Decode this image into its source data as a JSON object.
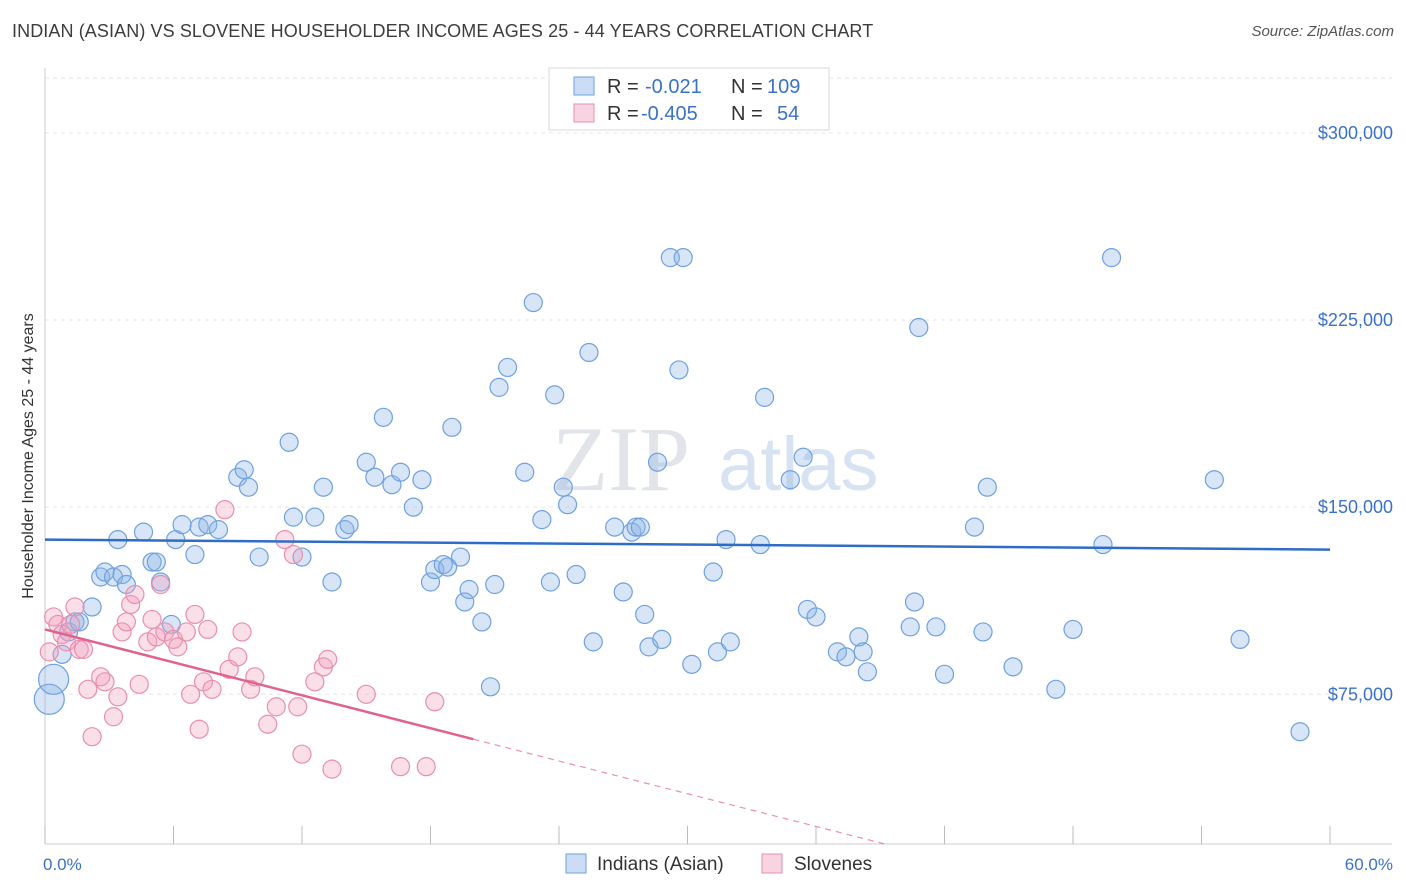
{
  "title": "INDIAN (ASIAN) VS SLOVENE HOUSEHOLDER INCOME AGES 25 - 44 YEARS CORRELATION CHART",
  "source": "Source: ZipAtlas.com",
  "watermark": {
    "zip": "ZIP",
    "atlas": "atlas"
  },
  "colors": {
    "blue": "#6fa1e0",
    "blue_fill": "rgba(140,180,230,0.35)",
    "blue_line": "#2f6cc7",
    "pink": "#e98fad",
    "pink_fill": "rgba(240,160,190,0.35)",
    "pink_line": "#e0638f",
    "tick_label": "#3a72c8"
  },
  "legend": {
    "row1": {
      "r_label": "R = ",
      "r_value": "-0.021",
      "n_label": "N = ",
      "n_value": "109"
    },
    "row2": {
      "r_label": "R = ",
      "r_value": "-0.405",
      "n_label": "N = ",
      "n_value": "54"
    }
  },
  "chart_data": {
    "type": "scatter",
    "title": "INDIAN (ASIAN) VS SLOVENE HOUSEHOLDER INCOME AGES 25 - 44 YEARS CORRELATION CHART",
    "xlabel": "",
    "ylabel": "Householder Income Ages 25 - 44 years",
    "xlim": [
      0,
      60
    ],
    "ylim": [
      15000,
      322000
    ],
    "x_tick_labels": [
      "0.0%",
      "60.0%"
    ],
    "y_ticks": [
      75000,
      150000,
      225000,
      300000
    ],
    "y_tick_labels": [
      "$75,000",
      "$150,000",
      "$225,000",
      "$300,000"
    ],
    "grid": true,
    "legend_position": "top-center",
    "series": [
      {
        "name": "Indians (Asian)",
        "color": "#6fa1e0",
        "trend": {
          "x": [
            0,
            60
          ],
          "y": [
            137000,
            133000
          ]
        },
        "points": [
          [
            0.2,
            73000,
            2
          ],
          [
            0.4,
            81000,
            2
          ],
          [
            0.8,
            91000,
            1
          ],
          [
            1.1,
            100000,
            1
          ],
          [
            1.4,
            104000,
            1
          ],
          [
            1.6,
            104000,
            1
          ],
          [
            2.2,
            110000,
            1
          ],
          [
            2.6,
            122000,
            1
          ],
          [
            2.8,
            124000,
            1
          ],
          [
            3.2,
            122000,
            1
          ],
          [
            3.4,
            137000,
            1
          ],
          [
            3.6,
            123000,
            1
          ],
          [
            3.8,
            119000,
            1
          ],
          [
            4.6,
            140000,
            1
          ],
          [
            5.0,
            128000,
            1
          ],
          [
            5.2,
            128000,
            1
          ],
          [
            5.4,
            120000,
            1
          ],
          [
            5.9,
            103000,
            1
          ],
          [
            6.1,
            137000,
            1
          ],
          [
            6.4,
            143000,
            1
          ],
          [
            7.0,
            131000,
            1
          ],
          [
            7.2,
            142000,
            1
          ],
          [
            7.6,
            143000,
            1
          ],
          [
            8.1,
            141000,
            1
          ],
          [
            9.0,
            162000,
            1
          ],
          [
            9.3,
            165000,
            1
          ],
          [
            9.5,
            158000,
            1
          ],
          [
            10.0,
            130000,
            1
          ],
          [
            11.4,
            176000,
            1
          ],
          [
            11.6,
            146000,
            1
          ],
          [
            12.0,
            130000,
            1
          ],
          [
            12.6,
            146000,
            1
          ],
          [
            13.0,
            158000,
            1
          ],
          [
            13.4,
            120000,
            1
          ],
          [
            14.0,
            141000,
            1
          ],
          [
            14.2,
            143000,
            1
          ],
          [
            15.0,
            168000,
            1
          ],
          [
            15.4,
            162000,
            1
          ],
          [
            15.8,
            186000,
            1
          ],
          [
            16.2,
            159000,
            1
          ],
          [
            16.6,
            164000,
            1
          ],
          [
            17.2,
            150000,
            1
          ],
          [
            17.6,
            161000,
            1
          ],
          [
            18.0,
            120000,
            1
          ],
          [
            18.2,
            125000,
            1
          ],
          [
            18.6,
            127000,
            1
          ],
          [
            18.8,
            126000,
            1
          ],
          [
            19.0,
            182000,
            1
          ],
          [
            19.4,
            130000,
            1
          ],
          [
            19.6,
            112000,
            1
          ],
          [
            19.8,
            117000,
            1
          ],
          [
            20.4,
            104000,
            1
          ],
          [
            20.8,
            78000,
            1
          ],
          [
            21.0,
            119000,
            1
          ],
          [
            21.2,
            198000,
            1
          ],
          [
            21.6,
            206000,
            1
          ],
          [
            22.4,
            164000,
            1
          ],
          [
            22.8,
            232000,
            1
          ],
          [
            23.2,
            145000,
            1
          ],
          [
            23.6,
            120000,
            1
          ],
          [
            23.8,
            195000,
            1
          ],
          [
            24.2,
            158000,
            1
          ],
          [
            24.4,
            151000,
            1
          ],
          [
            24.8,
            123000,
            1
          ],
          [
            25.4,
            212000,
            1
          ],
          [
            25.6,
            96000,
            1
          ],
          [
            26.6,
            142000,
            1
          ],
          [
            27.0,
            116000,
            1
          ],
          [
            27.4,
            140000,
            1
          ],
          [
            27.6,
            142000,
            1
          ],
          [
            27.8,
            142000,
            1
          ],
          [
            28.0,
            107000,
            1
          ],
          [
            28.2,
            94000,
            1
          ],
          [
            28.6,
            168000,
            1
          ],
          [
            28.8,
            97000,
            1
          ],
          [
            29.2,
            250000,
            1
          ],
          [
            29.6,
            205000,
            1
          ],
          [
            29.8,
            250000,
            1
          ],
          [
            30.2,
            87000,
            1
          ],
          [
            31.2,
            124000,
            1
          ],
          [
            31.4,
            92000,
            1
          ],
          [
            31.8,
            137000,
            1
          ],
          [
            32.0,
            96000,
            1
          ],
          [
            33.4,
            135000,
            1
          ],
          [
            33.6,
            194000,
            1
          ],
          [
            34.8,
            161000,
            1
          ],
          [
            35.4,
            170000,
            1
          ],
          [
            35.6,
            109000,
            1
          ],
          [
            36.0,
            106000,
            1
          ],
          [
            37.0,
            92000,
            1
          ],
          [
            37.4,
            90000,
            1
          ],
          [
            38.0,
            98000,
            1
          ],
          [
            38.4,
            84000,
            1
          ],
          [
            38.2,
            92000,
            1
          ],
          [
            40.4,
            102000,
            1
          ],
          [
            40.6,
            112000,
            1
          ],
          [
            40.8,
            222000,
            1
          ],
          [
            41.6,
            102000,
            1
          ],
          [
            42.0,
            83000,
            1
          ],
          [
            43.4,
            142000,
            1
          ],
          [
            43.8,
            100000,
            1
          ],
          [
            44.0,
            158000,
            1
          ],
          [
            45.2,
            86000,
            1
          ],
          [
            47.2,
            77000,
            1
          ],
          [
            48.0,
            101000,
            1
          ],
          [
            49.4,
            135000,
            1
          ],
          [
            49.8,
            250000,
            1
          ],
          [
            54.6,
            161000,
            1
          ],
          [
            55.8,
            97000,
            1
          ],
          [
            58.6,
            60000,
            1
          ]
        ]
      },
      {
        "name": "Slovenes",
        "color": "#e98fad",
        "trend": {
          "x": [
            0,
            20
          ],
          "y": [
            101000,
            57000
          ]
        },
        "trend_dashed": {
          "x": [
            20,
            47
          ],
          "y": [
            57000,
            -2000
          ]
        },
        "points": [
          [
            0.2,
            92000,
            1
          ],
          [
            0.4,
            106000,
            1
          ],
          [
            0.6,
            103000,
            1
          ],
          [
            0.8,
            99000,
            1
          ],
          [
            1.0,
            96000,
            1
          ],
          [
            1.2,
            103000,
            1
          ],
          [
            1.4,
            110000,
            1
          ],
          [
            1.6,
            93000,
            1
          ],
          [
            1.8,
            93000,
            1
          ],
          [
            2.0,
            77000,
            1
          ],
          [
            2.2,
            58000,
            1
          ],
          [
            2.6,
            82000,
            1
          ],
          [
            2.8,
            80000,
            1
          ],
          [
            3.2,
            66000,
            1
          ],
          [
            3.4,
            74000,
            1
          ],
          [
            3.6,
            100000,
            1
          ],
          [
            3.8,
            104000,
            1
          ],
          [
            4.0,
            111000,
            1
          ],
          [
            4.2,
            115000,
            1
          ],
          [
            4.4,
            79000,
            1
          ],
          [
            4.8,
            96000,
            1
          ],
          [
            5.0,
            105000,
            1
          ],
          [
            5.2,
            98000,
            1
          ],
          [
            5.4,
            119000,
            1
          ],
          [
            5.6,
            100000,
            1
          ],
          [
            6.0,
            97000,
            1
          ],
          [
            6.2,
            94000,
            1
          ],
          [
            6.6,
            100000,
            1
          ],
          [
            6.8,
            75000,
            1
          ],
          [
            7.0,
            107000,
            1
          ],
          [
            7.2,
            61000,
            1
          ],
          [
            7.4,
            80000,
            1
          ],
          [
            7.8,
            77000,
            1
          ],
          [
            7.6,
            101000,
            1
          ],
          [
            8.4,
            149000,
            1
          ],
          [
            8.6,
            85000,
            1
          ],
          [
            9.0,
            90000,
            1
          ],
          [
            9.2,
            100000,
            1
          ],
          [
            9.6,
            77000,
            1
          ],
          [
            9.8,
            82000,
            1
          ],
          [
            10.4,
            63000,
            1
          ],
          [
            10.8,
            70000,
            1
          ],
          [
            11.2,
            137000,
            1
          ],
          [
            11.6,
            131000,
            1
          ],
          [
            11.8,
            70000,
            1
          ],
          [
            12.0,
            51000,
            1
          ],
          [
            12.6,
            80000,
            1
          ],
          [
            13.0,
            86000,
            1
          ],
          [
            13.2,
            89000,
            1
          ],
          [
            13.4,
            45000,
            1
          ],
          [
            15.0,
            75000,
            1
          ],
          [
            16.6,
            46000,
            1
          ],
          [
            17.8,
            46000,
            1
          ],
          [
            18.2,
            72000,
            1
          ]
        ]
      }
    ]
  }
}
